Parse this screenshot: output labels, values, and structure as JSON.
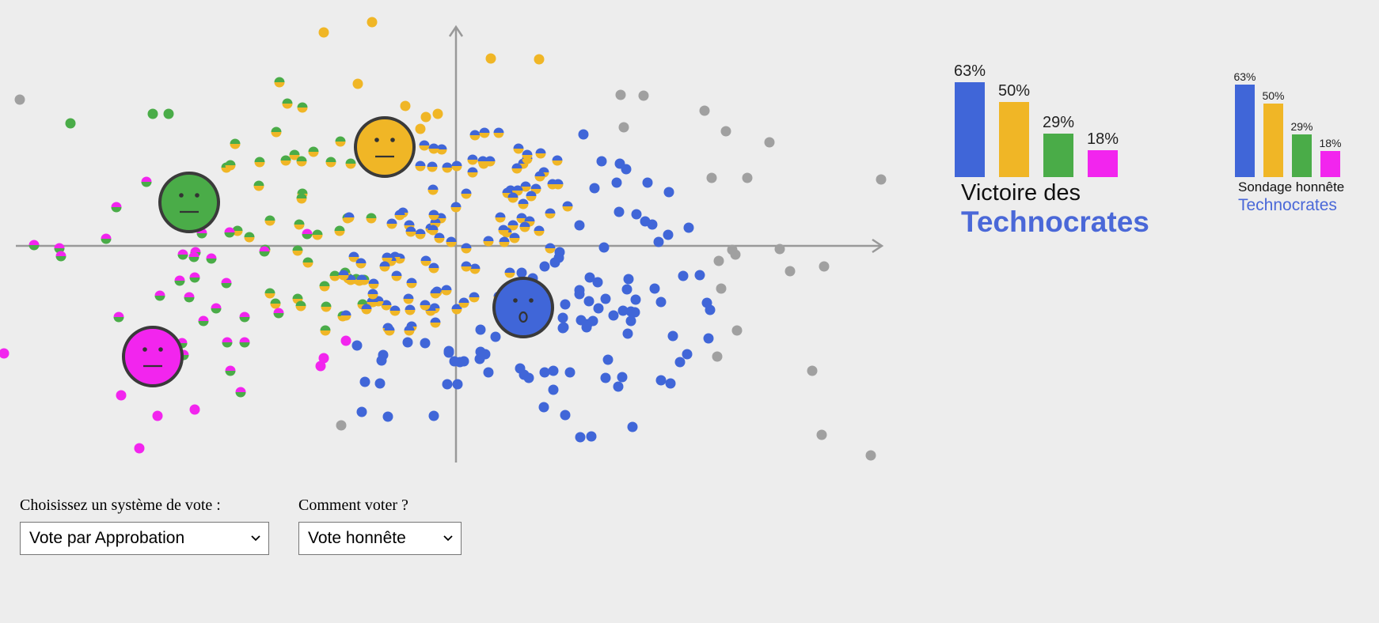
{
  "candidates": [
    {
      "id": "blue",
      "color": "#4066d8",
      "face": "surprised"
    },
    {
      "id": "yellow",
      "color": "#f0b626",
      "face": "neutral"
    },
    {
      "id": "green",
      "color": "#4aac48",
      "face": "neutral"
    },
    {
      "id": "pink",
      "color": "#f225ee",
      "face": "neutral"
    }
  ],
  "other_voter_color": "#a0a0a0",
  "results": {
    "bars": [
      {
        "candidate": "blue",
        "percent_label": "63%",
        "value": 63
      },
      {
        "candidate": "yellow",
        "percent_label": "50%",
        "value": 50
      },
      {
        "candidate": "green",
        "percent_label": "29%",
        "value": 29
      },
      {
        "candidate": "pink",
        "percent_label": "18%",
        "value": 18
      }
    ],
    "caption_line1": "Victoire des",
    "caption_line2": "Technocrates"
  },
  "poll": {
    "bars": [
      {
        "candidate": "blue",
        "percent_label": "63%",
        "value": 63
      },
      {
        "candidate": "yellow",
        "percent_label": "50%",
        "value": 50
      },
      {
        "candidate": "green",
        "percent_label": "29%",
        "value": 29
      },
      {
        "candidate": "pink",
        "percent_label": "18%",
        "value": 18
      }
    ],
    "caption_line1": "Sondage honnête",
    "caption_line2": "Technocrates"
  },
  "controls": {
    "system_label": "Choisissez un système de vote :",
    "system_value": "Vote par Approbation",
    "strategy_label": "Comment voter ?",
    "strategy_value": "Vote honnête"
  }
}
